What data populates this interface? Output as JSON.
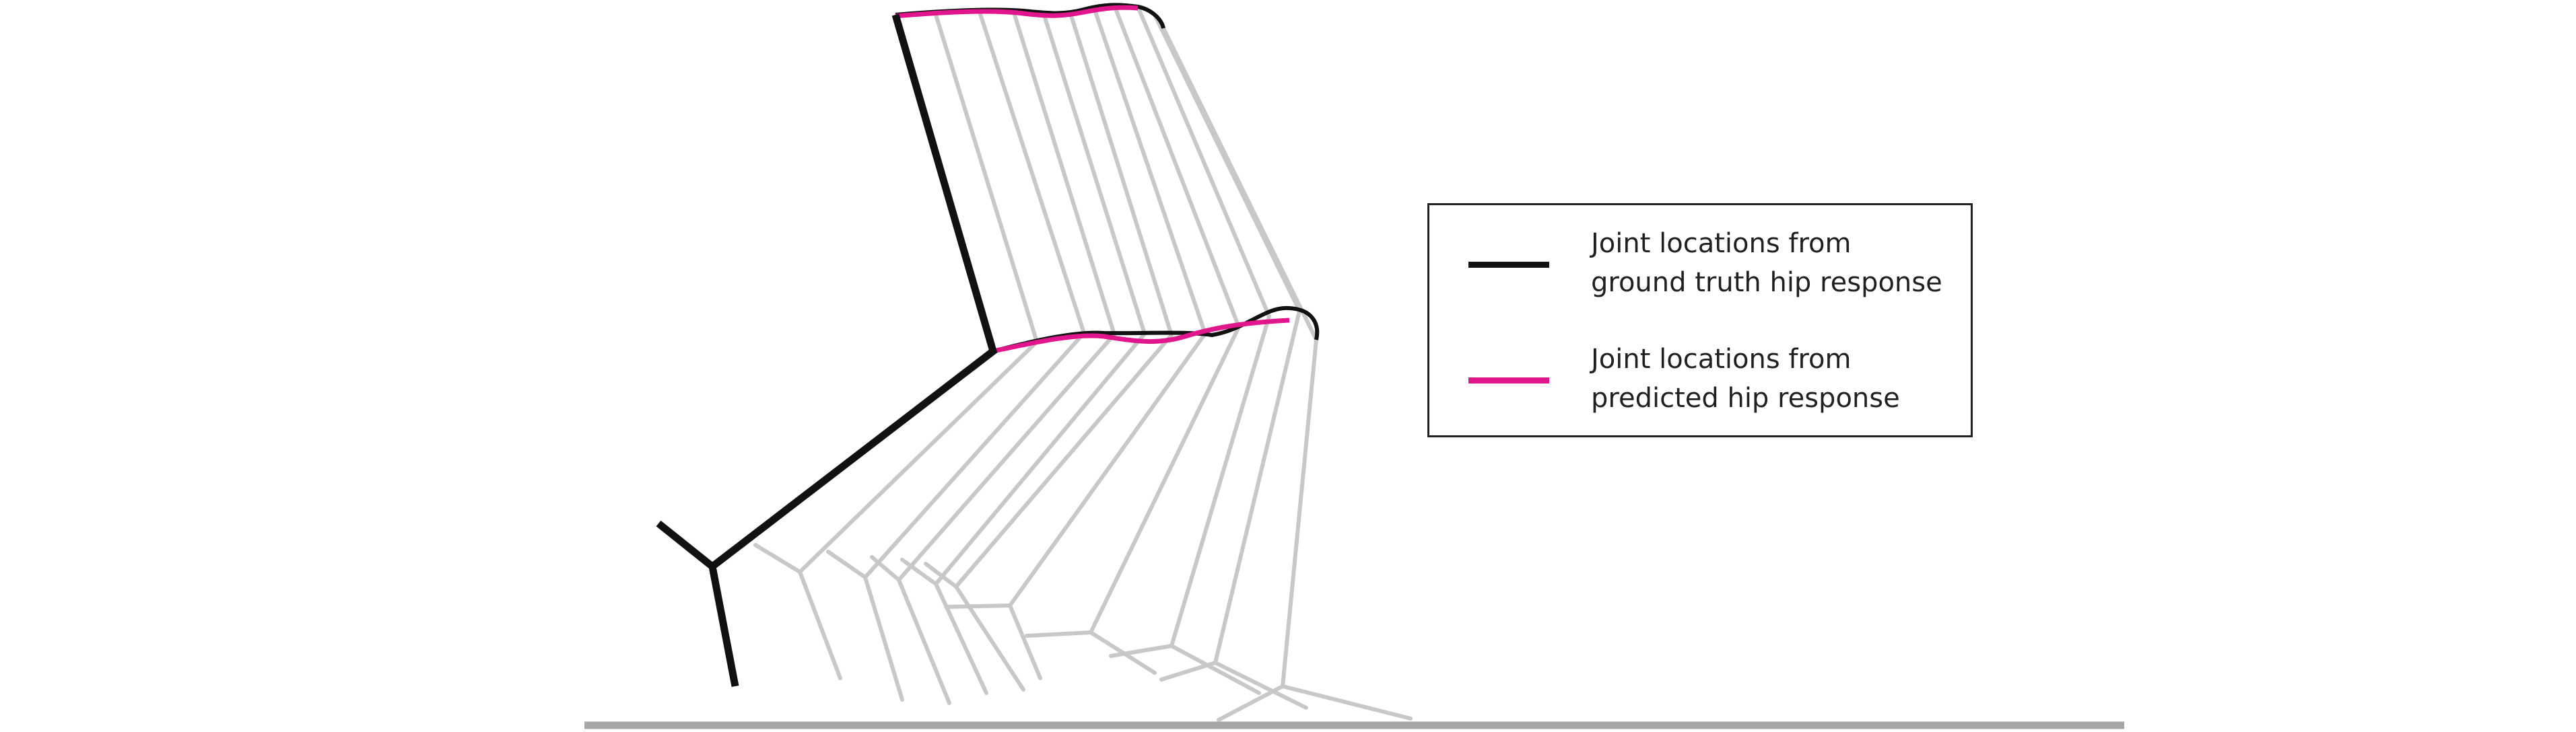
{
  "colors": {
    "ground_truth": "#111111",
    "predicted": "#e1168c",
    "ghost": "#bfbfbf",
    "ground": "#a6a6a6",
    "frame": "#231f20"
  },
  "legend": {
    "items": [
      {
        "line1": "Joint locations from",
        "line2": "ground truth hip response",
        "color": "#111111"
      },
      {
        "line1": "Joint locations from",
        "line2": "predicted hip response",
        "color": "#e1168c"
      }
    ]
  }
}
